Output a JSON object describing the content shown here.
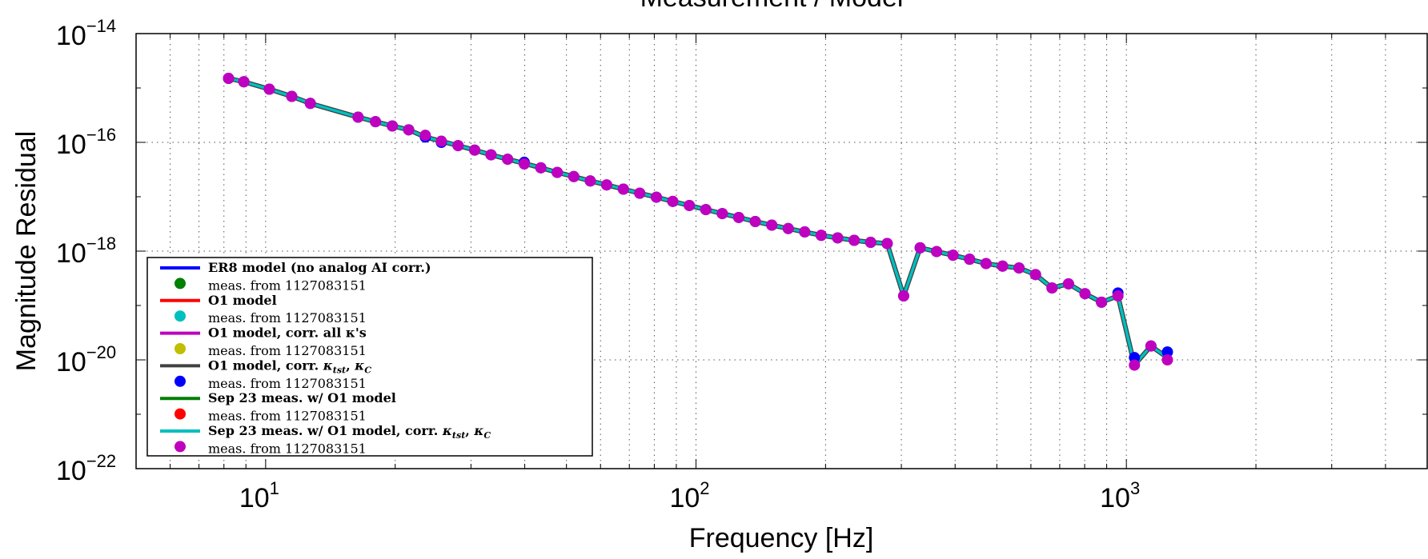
{
  "chart_data": {
    "type": "line",
    "title": "Measurement / Model",
    "xlabel": "Frequency [Hz]",
    "ylabel": "Magnitude Residual",
    "xscale": "log",
    "yscale": "log",
    "xlim": [
      5,
      5000
    ],
    "ylim": [
      1e-22,
      1e-14
    ],
    "grid": true,
    "legend_position": "bottom-left",
    "x_ticks": [
      {
        "base": "10",
        "exp": "1"
      },
      {
        "base": "10",
        "exp": "2"
      },
      {
        "base": "10",
        "exp": "3"
      }
    ],
    "y_ticks": [
      {
        "base": "10",
        "exp": "−14"
      },
      {
        "base": "10",
        "exp": "−16"
      },
      {
        "base": "10",
        "exp": "−18"
      },
      {
        "base": "10",
        "exp": "−20"
      },
      {
        "base": "10",
        "exp": "−22"
      }
    ],
    "legend": [
      {
        "line_label": "ER8 model (no analog AI corr.)",
        "line_color": "#0000ff",
        "meas_label": "meas. from 1127083151",
        "meas_color": "#007f00"
      },
      {
        "line_label": "O1 model",
        "line_color": "#ff0000",
        "meas_label": "meas. from 1127083151",
        "meas_color": "#00bfbf"
      },
      {
        "line_label": "O1 model, corr. all κ's",
        "line_color": "#bf00bf",
        "meas_label": "meas. from 1127083151",
        "meas_color": "#bfbf00"
      },
      {
        "line_label": "O1 model, corr. κtst, κC",
        "line_color": "#404040",
        "meas_label": "meas. from 1127083151",
        "meas_color": "#0000ff"
      },
      {
        "line_label": "Sep 23 meas. w/ O1 model",
        "line_color": "#007f00",
        "meas_label": "meas. from 1127083151",
        "meas_color": "#ff0000"
      },
      {
        "line_label": "Sep 23 meas. w/ O1 model, corr. κtst, κC",
        "line_color": "#00bfbf",
        "meas_label": "meas. from 1127083151",
        "meas_color": "#bf00bf"
      }
    ],
    "series": [
      {
        "legend_index": 5,
        "kind": "line",
        "color": "#00bfbf",
        "x": [
          8.2,
          8.9,
          10.2,
          11.5,
          12.7,
          16.4,
          18,
          19.7,
          21.5,
          23.5,
          25.6,
          28,
          30.6,
          33.4,
          36.5,
          39.9,
          43.6,
          47.6,
          52,
          56.8,
          62,
          67.8,
          74,
          80.9,
          88.3,
          96.5,
          105.4,
          115.1,
          125.7,
          137.3,
          150,
          163.8,
          178.9,
          195.4,
          213.4,
          233.1,
          254.6,
          278.1,
          303.7,
          331.7,
          362.3,
          395.7,
          432.2,
          472,
          515.6,
          563.1,
          615,
          671.8,
          733.7,
          801.4,
          875.3,
          956,
          1044.1,
          1140.4,
          1245.6
        ],
        "y": [
          1.5e-15,
          1.3e-15,
          9.5e-16,
          7e-16,
          5.2e-16,
          2.9e-16,
          2.4e-16,
          2e-16,
          1.7e-16,
          1.25e-16,
          1.05e-16,
          8.7e-17,
          7.2e-17,
          5.9e-17,
          4.9e-17,
          4.1e-17,
          3.4e-17,
          2.8e-17,
          2.35e-17,
          1.95e-17,
          1.65e-17,
          1.38e-17,
          1.16e-17,
          9.8e-18,
          8.2e-18,
          6.9e-18,
          5.8e-18,
          4.9e-18,
          4.15e-18,
          3.5e-18,
          3e-18,
          2.6e-18,
          2.25e-18,
          1.95e-18,
          1.75e-18,
          1.58e-18,
          1.45e-18,
          1.38e-18,
          1.5e-19,
          1.15e-18,
          9.8e-19,
          8.4e-19,
          7.1e-19,
          5.9e-19,
          5.3e-19,
          4.9e-19,
          3.7e-19,
          2.1e-19,
          2.5e-19,
          1.65e-19,
          1.15e-19,
          1.5e-19,
          8e-21,
          1.8e-20,
          1.1e-20
        ]
      },
      {
        "legend_index": 3,
        "kind": "markers",
        "color": "#0000ff",
        "x": [
          8.2,
          8.9,
          10.2,
          11.5,
          12.7,
          16.4,
          18,
          19.7,
          21.5,
          23.5,
          25.6,
          28,
          30.6,
          33.4,
          36.5,
          39.9,
          43.6,
          47.6,
          52,
          56.8,
          62,
          67.8,
          74,
          80.9,
          88.3,
          96.5,
          105.4,
          115.1,
          125.7,
          137.3,
          150,
          163.8,
          178.9,
          195.4,
          213.4,
          233.1,
          254.6,
          278.1,
          303.7,
          331.7,
          362.3,
          395.7,
          432.2,
          472,
          515.6,
          563.1,
          615,
          671.8,
          733.7,
          801.4,
          875.3,
          956,
          1044.1,
          1140.4,
          1245.6
        ],
        "y": [
          1.5e-15,
          1.3e-15,
          9.5e-16,
          7e-16,
          5.2e-16,
          2.9e-16,
          2.4e-16,
          2e-16,
          1.7e-16,
          1.25e-16,
          1e-16,
          8.7e-17,
          7.2e-17,
          5.9e-17,
          4.9e-17,
          4.3e-17,
          3.4e-17,
          2.8e-17,
          2.35e-17,
          1.95e-17,
          1.65e-17,
          1.38e-17,
          1.16e-17,
          9.8e-18,
          8.2e-18,
          6.9e-18,
          5.8e-18,
          4.9e-18,
          4.15e-18,
          3.5e-18,
          3e-18,
          2.6e-18,
          2.25e-18,
          1.95e-18,
          1.75e-18,
          1.58e-18,
          1.45e-18,
          1.38e-18,
          1.5e-19,
          1.15e-18,
          9.8e-19,
          8.4e-19,
          7.1e-19,
          5.9e-19,
          5.3e-19,
          4.9e-19,
          3.7e-19,
          2.1e-19,
          2.5e-19,
          1.65e-19,
          1.15e-19,
          1.7e-19,
          1.1e-20,
          1.8e-20,
          1.4e-20
        ]
      },
      {
        "legend_index": 5,
        "kind": "markers",
        "color": "#bf00bf",
        "x": [
          8.2,
          8.9,
          10.2,
          11.5,
          12.7,
          16.4,
          18,
          19.7,
          21.5,
          23.5,
          25.6,
          28,
          30.6,
          33.4,
          36.5,
          39.9,
          43.6,
          47.6,
          52,
          56.8,
          62,
          67.8,
          74,
          80.9,
          88.3,
          96.5,
          105.4,
          115.1,
          125.7,
          137.3,
          150,
          163.8,
          178.9,
          195.4,
          213.4,
          233.1,
          254.6,
          278.1,
          303.7,
          331.7,
          362.3,
          395.7,
          432.2,
          472,
          515.6,
          563.1,
          615,
          671.8,
          733.7,
          801.4,
          875.3,
          956,
          1044.1,
          1140.4,
          1245.6
        ],
        "y": [
          1.5e-15,
          1.3e-15,
          9.5e-16,
          7e-16,
          5.2e-16,
          2.9e-16,
          2.4e-16,
          2e-16,
          1.7e-16,
          1.35e-16,
          1.05e-16,
          8.7e-17,
          7.2e-17,
          5.9e-17,
          4.9e-17,
          4e-17,
          3.4e-17,
          2.8e-17,
          2.35e-17,
          1.95e-17,
          1.65e-17,
          1.38e-17,
          1.16e-17,
          9.8e-18,
          8.2e-18,
          6.9e-18,
          5.8e-18,
          4.9e-18,
          4.15e-18,
          3.5e-18,
          3e-18,
          2.6e-18,
          2.25e-18,
          1.95e-18,
          1.75e-18,
          1.58e-18,
          1.45e-18,
          1.38e-18,
          1.5e-19,
          1.15e-18,
          9.8e-19,
          8.4e-19,
          7.1e-19,
          5.9e-19,
          5.3e-19,
          4.9e-19,
          3.7e-19,
          2.1e-19,
          2.5e-19,
          1.65e-19,
          1.15e-19,
          1.5e-19,
          8e-21,
          1.8e-20,
          1e-20
        ]
      }
    ]
  }
}
